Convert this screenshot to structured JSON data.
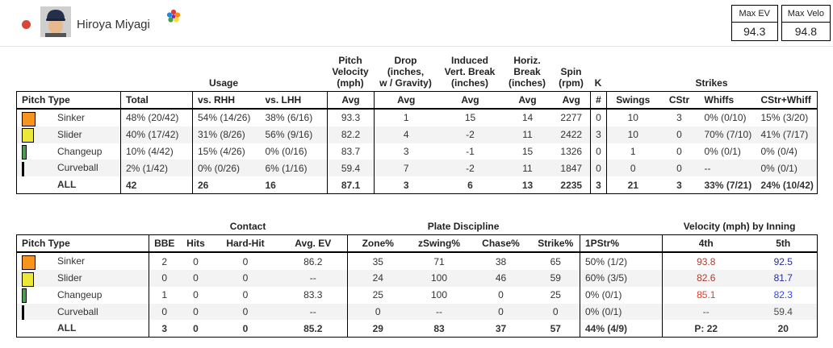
{
  "header": {
    "player_name": "Hiroya Miyagi",
    "status_dot_color": "#db4437",
    "stats": [
      {
        "label": "Max EV",
        "value": "94.3"
      },
      {
        "label": "Max Velo",
        "value": "94.8"
      }
    ]
  },
  "colors": {
    "dark_red": "#a63d30",
    "bright_red": "#ec3b2f",
    "dark_blue": "#2a2a9c",
    "bright_blue": "#3349e8",
    "neutral_gray": "#4a4a4a",
    "row_stripe": "#f3f3f3",
    "sinker_swatch": "#f7941e",
    "slider_swatch": "#ece83a",
    "changeup_swatch": "#4c9e52",
    "curveball_swatch": "#000000"
  },
  "table1": {
    "group_headers": {
      "usage": "Usage",
      "velocity": "Pitch\nVelocity\n(mph)",
      "drop": "Drop\n(inches,\nw / Gravity)",
      "ivb": "Induced\nVert. Break\n(inches)",
      "hb": "Horiz.\nBreak\n(inches)",
      "spin": "Spin\n(rpm)",
      "k": "K",
      "strikes": "Strikes"
    },
    "columns": {
      "pitch_type": "Pitch Type",
      "total": "Total",
      "rhh": "vs. RHH",
      "lhh": "vs. LHH",
      "vel_avg": "Avg",
      "drop_avg": "Avg",
      "ivb_avg": "Avg",
      "hb_avg": "Avg",
      "spin_avg": "Avg",
      "k_num": "#",
      "swings": "Swings",
      "cstr": "CStr",
      "whiffs": "Whiffs",
      "cstr_whiff": "CStr+Whiff"
    },
    "rows": [
      {
        "pitch": "Sinker",
        "swatch_color": "#f7941e",
        "swatch_width": 17,
        "total": "48% (20/42)",
        "rhh": "54% (14/26)",
        "lhh": "38% (6/16)",
        "vel": "93.3",
        "drop": "1",
        "ivb": "15",
        "hb": "14",
        "spin": "2277",
        "k": "0",
        "swings": "10",
        "cstr": "3",
        "whiffs": "0% (0/10)",
        "csw": "15% (3/20)"
      },
      {
        "pitch": "Slider",
        "swatch_color": "#ece83a",
        "swatch_width": 15,
        "total": "40% (17/42)",
        "rhh": "31% (8/26)",
        "lhh": "56% (9/16)",
        "vel": "82.2",
        "drop": "4",
        "ivb": "-2",
        "hb": "11",
        "spin": "2422",
        "k": "3",
        "swings": "10",
        "cstr": "0",
        "whiffs": "70% (7/10)",
        "csw": "41% (7/17)"
      },
      {
        "pitch": "Changeup",
        "swatch_color": "#4c9e52",
        "swatch_width": 6,
        "total": "10% (4/42)",
        "rhh": "15% (4/26)",
        "lhh": "0% (0/16)",
        "vel": "83.7",
        "drop": "3",
        "ivb": "-1",
        "hb": "15",
        "spin": "1326",
        "k": "0",
        "swings": "1",
        "cstr": "0",
        "whiffs": "0% (0/1)",
        "csw": "0% (0/4)"
      },
      {
        "pitch": "Curveball",
        "swatch_color": "#000000",
        "swatch_width": 3,
        "total": "2% (1/42)",
        "rhh": "0% (0/26)",
        "lhh": "6% (1/16)",
        "vel": "59.4",
        "drop": "7",
        "ivb": "-2",
        "hb": "11",
        "spin": "1847",
        "k": "0",
        "swings": "0",
        "cstr": "0",
        "whiffs": "--",
        "csw": "0% (0/1)"
      },
      {
        "pitch": "ALL",
        "total": "42",
        "rhh": "26",
        "lhh": "16",
        "vel": "87.1",
        "drop": "3",
        "ivb": "6",
        "hb": "13",
        "spin": "2235",
        "k": "3",
        "swings": "21",
        "cstr": "3",
        "whiffs": "33% (7/21)",
        "csw": "24% (10/42)"
      }
    ]
  },
  "table2": {
    "group_headers": {
      "contact": "Contact",
      "plate_discipline": "Plate Discipline",
      "velocity_by_inning": "Velocity (mph) by Inning"
    },
    "columns": {
      "pitch_type": "Pitch Type",
      "bbe": "BBE",
      "hits": "Hits",
      "hard_hit": "Hard-Hit",
      "avg_ev": "Avg. EV",
      "zone": "Zone%",
      "zswing": "zSwing%",
      "chase": "Chase%",
      "strike": "Strike%",
      "p1str": "1PStr%",
      "inn4": "4th",
      "inn5": "5th"
    },
    "rows": [
      {
        "pitch": "Sinker",
        "swatch_color": "#f7941e",
        "swatch_width": 17,
        "bbe": "2",
        "hits": "0",
        "hard_hit": "0",
        "avg_ev": "86.2",
        "zone": "35",
        "zswing": "71",
        "chase": "38",
        "strike": "65",
        "p1str": "50% (1/2)",
        "i4": "93.8",
        "i5": "92.5",
        "i4_tone": "dark-red",
        "i5_tone": "dark-blue"
      },
      {
        "pitch": "Slider",
        "swatch_color": "#ece83a",
        "swatch_width": 15,
        "bbe": "0",
        "hits": "0",
        "hard_hit": "0",
        "avg_ev": "--",
        "zone": "24",
        "zswing": "100",
        "chase": "46",
        "strike": "59",
        "p1str": "60% (3/5)",
        "i4": "82.6",
        "i5": "81.7",
        "i4_tone": "dark-red",
        "i5_tone": "dark-blue"
      },
      {
        "pitch": "Changeup",
        "swatch_color": "#4c9e52",
        "swatch_width": 6,
        "bbe": "1",
        "hits": "0",
        "hard_hit": "0",
        "avg_ev": "83.3",
        "zone": "25",
        "zswing": "100",
        "chase": "0",
        "strike": "25",
        "p1str": "0% (0/1)",
        "i4": "85.1",
        "i5": "82.3",
        "i4_tone": "bright-red",
        "i5_tone": "bright-blue"
      },
      {
        "pitch": "Curveball",
        "swatch_color": "#000000",
        "swatch_width": 3,
        "bbe": "0",
        "hits": "0",
        "hard_hit": "0",
        "avg_ev": "--",
        "zone": "0",
        "zswing": "--",
        "chase": "0",
        "strike": "0",
        "p1str": "0% (0/1)",
        "i4": "--",
        "i5": "59.4",
        "i4_tone": "neutral",
        "i5_tone": "neutral"
      },
      {
        "pitch": "ALL",
        "bbe": "3",
        "hits": "0",
        "hard_hit": "0",
        "avg_ev": "85.2",
        "zone": "29",
        "zswing": "83",
        "chase": "37",
        "strike": "57",
        "p1str": "44% (4/9)",
        "i4": "P: 22",
        "i5": "20"
      }
    ]
  }
}
